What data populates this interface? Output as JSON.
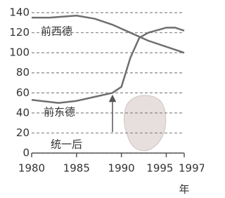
{
  "chart_data": {
    "type": "line",
    "x_label": "年",
    "annotation": "统一后",
    "series": [
      {
        "name": "前西德",
        "color": "#6f6f6f",
        "x": [
          1980,
          1982,
          1985,
          1987,
          1989,
          1991,
          1993,
          1995,
          1997
        ],
        "values": [
          135,
          135,
          137,
          134,
          128,
          120,
          112,
          106,
          100
        ]
      },
      {
        "name": "前东德",
        "color": "#6f6f6f",
        "x": [
          1980,
          1983,
          1985,
          1987,
          1989,
          1990,
          1991,
          1992,
          1993,
          1995,
          1996,
          1997
        ],
        "values": [
          53,
          50,
          52,
          56,
          60,
          66,
          95,
          115,
          120,
          125,
          125,
          122
        ]
      }
    ],
    "xlim": [
      1980,
      1997
    ],
    "xticks": [
      1980,
      1985,
      1990,
      1995,
      1997
    ],
    "ylim": [
      0,
      140
    ],
    "yticks": [
      0,
      20,
      40,
      60,
      80,
      100,
      120,
      140
    ],
    "grid": true
  }
}
